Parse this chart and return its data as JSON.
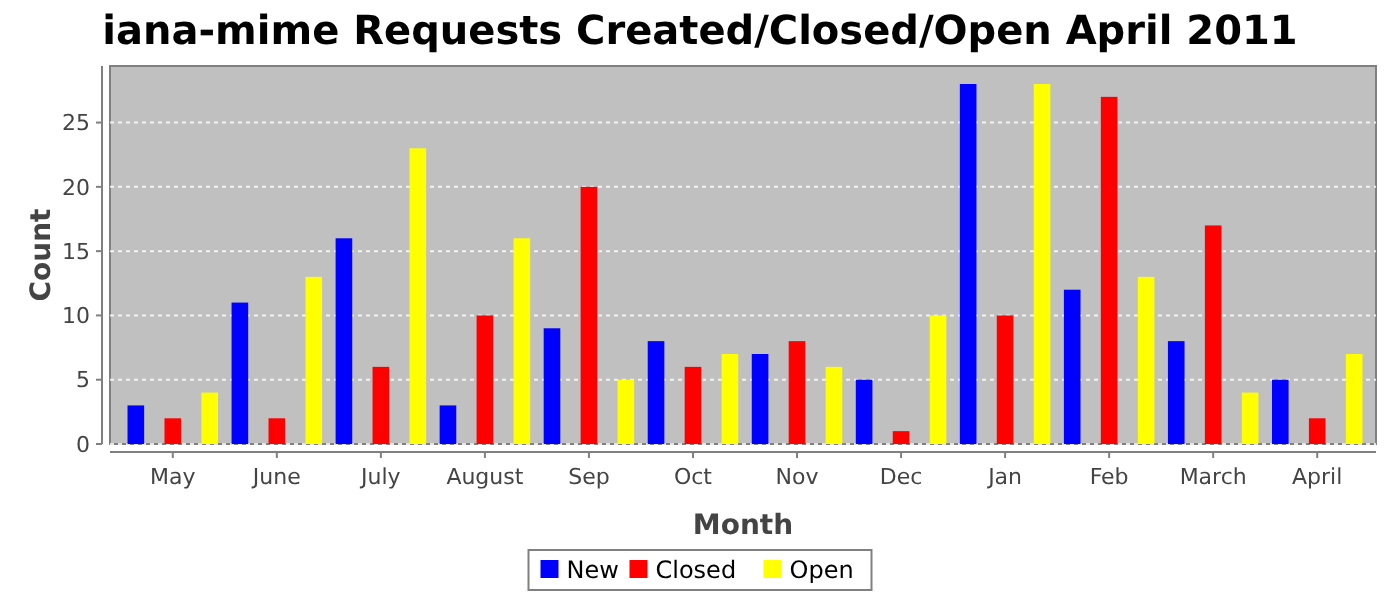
{
  "chart_data": {
    "type": "bar",
    "title": "iana-mime Requests Created/Closed/Open April 2011",
    "xlabel": "Month",
    "ylabel": "Count",
    "categories": [
      "May",
      "June",
      "July",
      "August",
      "Sep",
      "Oct",
      "Nov",
      "Dec",
      "Jan",
      "Feb",
      "March",
      "April"
    ],
    "series": [
      {
        "name": "New",
        "color": "#0000ff",
        "values": [
          3,
          11,
          16,
          3,
          9,
          8,
          7,
          5,
          28,
          12,
          8,
          5
        ]
      },
      {
        "name": "Closed",
        "color": "#ff0000",
        "values": [
          2,
          2,
          6,
          10,
          20,
          6,
          8,
          1,
          10,
          27,
          17,
          2
        ]
      },
      {
        "name": "Open",
        "color": "#ffff00",
        "values": [
          4,
          13,
          23,
          16,
          5,
          7,
          6,
          10,
          28,
          13,
          4,
          7
        ]
      }
    ],
    "ylim": [
      0,
      29.4
    ],
    "yticks": [
      0,
      5,
      10,
      15,
      20,
      25
    ],
    "grid": "y",
    "legend": "bottom"
  }
}
